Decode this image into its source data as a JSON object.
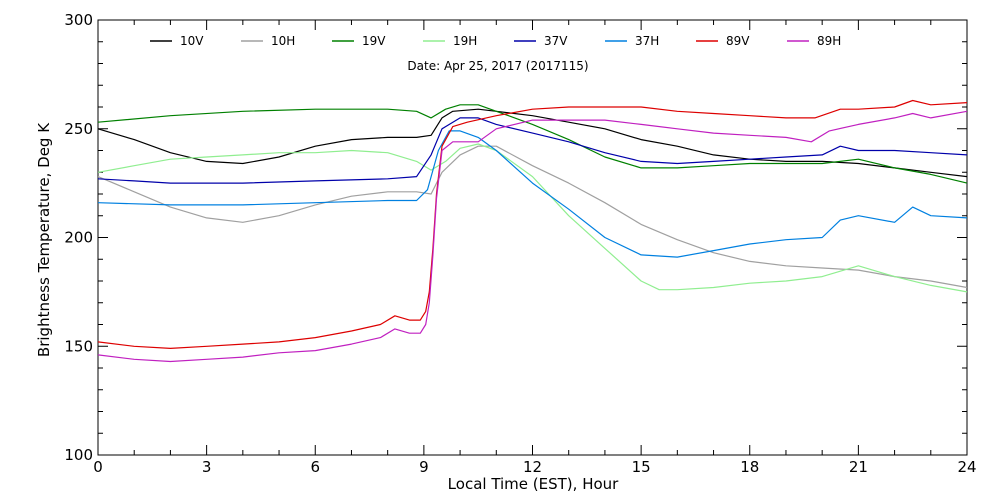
{
  "chart_data": {
    "type": "line",
    "title": "",
    "annotation": "Date: Apr 25, 2017 (2017115)",
    "xlabel": "Local Time (EST), Hour",
    "ylabel": "Brightness Temperature, Deg K",
    "xlim": [
      0,
      24
    ],
    "ylim": [
      100,
      300
    ],
    "xticks": [
      0,
      3,
      6,
      9,
      12,
      15,
      18,
      21,
      24
    ],
    "yticks": [
      100,
      150,
      200,
      250,
      300
    ],
    "grid": false,
    "legend_position": "top",
    "series": [
      {
        "name": "10V",
        "color": "#000000",
        "points": [
          [
            0,
            250
          ],
          [
            1,
            245
          ],
          [
            2,
            239
          ],
          [
            3,
            235
          ],
          [
            4,
            234
          ],
          [
            5,
            237
          ],
          [
            6,
            242
          ],
          [
            7,
            245
          ],
          [
            8,
            246
          ],
          [
            8.8,
            246
          ],
          [
            9.2,
            247
          ],
          [
            9.5,
            255
          ],
          [
            9.8,
            258
          ],
          [
            10.5,
            259
          ],
          [
            11,
            258
          ],
          [
            12,
            256
          ],
          [
            13,
            253
          ],
          [
            14,
            250
          ],
          [
            15,
            245
          ],
          [
            16,
            242
          ],
          [
            17,
            238
          ],
          [
            18,
            236
          ],
          [
            19,
            235
          ],
          [
            20,
            235
          ],
          [
            21,
            234
          ],
          [
            22,
            232
          ],
          [
            23,
            230
          ],
          [
            24,
            228
          ]
        ]
      },
      {
        "name": "10H",
        "color": "#a0a0a0",
        "points": [
          [
            0,
            228
          ],
          [
            1,
            221
          ],
          [
            2,
            214
          ],
          [
            3,
            209
          ],
          [
            4,
            207
          ],
          [
            5,
            210
          ],
          [
            6,
            215
          ],
          [
            7,
            219
          ],
          [
            8,
            221
          ],
          [
            8.8,
            221
          ],
          [
            9.2,
            220
          ],
          [
            9.5,
            230
          ],
          [
            10,
            238
          ],
          [
            10.5,
            242
          ],
          [
            11,
            242
          ],
          [
            12,
            233
          ],
          [
            13,
            225
          ],
          [
            14,
            216
          ],
          [
            15,
            206
          ],
          [
            16,
            199
          ],
          [
            17,
            193
          ],
          [
            18,
            189
          ],
          [
            19,
            187
          ],
          [
            20,
            186
          ],
          [
            21,
            185
          ],
          [
            22,
            182
          ],
          [
            23,
            180
          ],
          [
            24,
            177
          ]
        ]
      },
      {
        "name": "19V",
        "color": "#008000",
        "points": [
          [
            0,
            253
          ],
          [
            2,
            256
          ],
          [
            4,
            258
          ],
          [
            6,
            259
          ],
          [
            8,
            259
          ],
          [
            8.8,
            258
          ],
          [
            9.2,
            255
          ],
          [
            9.6,
            259
          ],
          [
            10,
            261
          ],
          [
            10.5,
            261
          ],
          [
            11,
            258
          ],
          [
            12,
            252
          ],
          [
            13,
            245
          ],
          [
            14,
            237
          ],
          [
            15,
            232
          ],
          [
            16,
            232
          ],
          [
            17,
            233
          ],
          [
            18,
            234
          ],
          [
            19,
            234
          ],
          [
            20,
            234
          ],
          [
            21,
            236
          ],
          [
            22,
            232
          ],
          [
            23,
            229
          ],
          [
            24,
            225
          ]
        ]
      },
      {
        "name": "19H",
        "color": "#90ee90",
        "points": [
          [
            0,
            230
          ],
          [
            1,
            233
          ],
          [
            2,
            236
          ],
          [
            3,
            237
          ],
          [
            4,
            238
          ],
          [
            5,
            239
          ],
          [
            6,
            239
          ],
          [
            7,
            240
          ],
          [
            8,
            239
          ],
          [
            8.8,
            235
          ],
          [
            9.2,
            231
          ],
          [
            9.6,
            235
          ],
          [
            10,
            241
          ],
          [
            10.5,
            243
          ],
          [
            11,
            240
          ],
          [
            12,
            228
          ],
          [
            13,
            210
          ],
          [
            14,
            195
          ],
          [
            15,
            180
          ],
          [
            15.5,
            176
          ],
          [
            16,
            176
          ],
          [
            17,
            177
          ],
          [
            18,
            179
          ],
          [
            19,
            180
          ],
          [
            20,
            182
          ],
          [
            21,
            187
          ],
          [
            22,
            182
          ],
          [
            23,
            178
          ],
          [
            24,
            175
          ]
        ]
      },
      {
        "name": "37V",
        "color": "#0000aa",
        "points": [
          [
            0,
            227
          ],
          [
            1,
            226
          ],
          [
            2,
            225
          ],
          [
            4,
            225
          ],
          [
            6,
            226
          ],
          [
            8,
            227
          ],
          [
            8.8,
            228
          ],
          [
            9.2,
            238
          ],
          [
            9.5,
            250
          ],
          [
            10,
            255
          ],
          [
            10.5,
            255
          ],
          [
            11,
            252
          ],
          [
            12,
            248
          ],
          [
            13,
            244
          ],
          [
            14,
            239
          ],
          [
            15,
            235
          ],
          [
            16,
            234
          ],
          [
            17,
            235
          ],
          [
            18,
            236
          ],
          [
            19,
            237
          ],
          [
            20,
            238
          ],
          [
            20.5,
            242
          ],
          [
            21,
            240
          ],
          [
            22,
            240
          ],
          [
            23,
            239
          ],
          [
            24,
            238
          ]
        ]
      },
      {
        "name": "37H",
        "color": "#0080e0",
        "points": [
          [
            0,
            216
          ],
          [
            2,
            215
          ],
          [
            4,
            215
          ],
          [
            6,
            216
          ],
          [
            8,
            217
          ],
          [
            8.8,
            217
          ],
          [
            9.1,
            222
          ],
          [
            9.4,
            240
          ],
          [
            9.7,
            249
          ],
          [
            10,
            249
          ],
          [
            10.5,
            246
          ],
          [
            11,
            240
          ],
          [
            12,
            225
          ],
          [
            13,
            213
          ],
          [
            14,
            200
          ],
          [
            15,
            192
          ],
          [
            16,
            191
          ],
          [
            17,
            194
          ],
          [
            18,
            197
          ],
          [
            19,
            199
          ],
          [
            20,
            200
          ],
          [
            20.5,
            208
          ],
          [
            21,
            210
          ],
          [
            22,
            207
          ],
          [
            22.5,
            214
          ],
          [
            23,
            210
          ],
          [
            24,
            209
          ]
        ]
      },
      {
        "name": "89V",
        "color": "#dd0000",
        "points": [
          [
            0,
            152
          ],
          [
            1,
            150
          ],
          [
            2,
            149
          ],
          [
            3,
            150
          ],
          [
            4,
            151
          ],
          [
            5,
            152
          ],
          [
            6,
            154
          ],
          [
            7,
            157
          ],
          [
            7.8,
            160
          ],
          [
            8.2,
            164
          ],
          [
            8.6,
            162
          ],
          [
            8.9,
            162
          ],
          [
            9.05,
            166
          ],
          [
            9.15,
            175
          ],
          [
            9.25,
            195
          ],
          [
            9.35,
            220
          ],
          [
            9.5,
            242
          ],
          [
            9.8,
            251
          ],
          [
            10.2,
            253
          ],
          [
            11,
            256
          ],
          [
            12,
            259
          ],
          [
            13,
            260
          ],
          [
            14,
            260
          ],
          [
            15,
            260
          ],
          [
            16,
            258
          ],
          [
            17,
            257
          ],
          [
            18,
            256
          ],
          [
            19,
            255
          ],
          [
            19.8,
            255
          ],
          [
            20.5,
            259
          ],
          [
            21,
            259
          ],
          [
            22,
            260
          ],
          [
            22.5,
            263
          ],
          [
            23,
            261
          ],
          [
            24,
            262
          ]
        ]
      },
      {
        "name": "89H",
        "color": "#c020c0",
        "points": [
          [
            0,
            146
          ],
          [
            1,
            144
          ],
          [
            2,
            143
          ],
          [
            3,
            144
          ],
          [
            4,
            145
          ],
          [
            5,
            147
          ],
          [
            6,
            148
          ],
          [
            7,
            151
          ],
          [
            7.8,
            154
          ],
          [
            8.2,
            158
          ],
          [
            8.6,
            156
          ],
          [
            8.9,
            156
          ],
          [
            9.05,
            160
          ],
          [
            9.15,
            170
          ],
          [
            9.25,
            192
          ],
          [
            9.35,
            218
          ],
          [
            9.5,
            240
          ],
          [
            9.8,
            244
          ],
          [
            10.5,
            244
          ],
          [
            11,
            250
          ],
          [
            12,
            254
          ],
          [
            13,
            254
          ],
          [
            14,
            254
          ],
          [
            15,
            252
          ],
          [
            16,
            250
          ],
          [
            17,
            248
          ],
          [
            18,
            247
          ],
          [
            19,
            246
          ],
          [
            19.7,
            244
          ],
          [
            20.2,
            249
          ],
          [
            21,
            252
          ],
          [
            22,
            255
          ],
          [
            22.5,
            257
          ],
          [
            23,
            255
          ],
          [
            24,
            258
          ]
        ]
      }
    ]
  }
}
